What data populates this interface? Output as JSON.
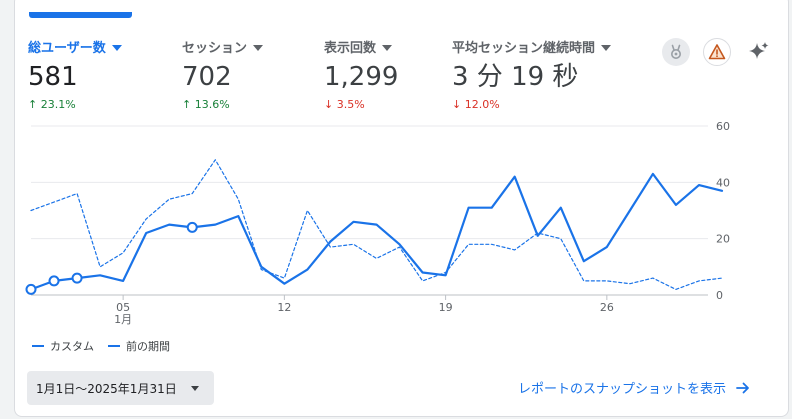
{
  "metrics": [
    {
      "label": "総ユーザー数",
      "value": "581",
      "change": "23.1%",
      "direction": "up",
      "active": true
    },
    {
      "label": "セッション",
      "value": "702",
      "change": "13.6%",
      "direction": "up",
      "active": false
    },
    {
      "label": "表示回数",
      "value": "1,299",
      "change": "3.5%",
      "direction": "down",
      "active": false
    },
    {
      "label": "平均セッション継続時間",
      "value": "3 分 19 秒",
      "change": "12.0%",
      "direction": "down",
      "active": false
    }
  ],
  "arrows": {
    "up": "↑",
    "down": "↓"
  },
  "toolbar": {
    "badge_icon": "rabbit-badge-icon",
    "warning_icon": "warning-icon",
    "insights_icon": "sparkle-icon"
  },
  "colors": {
    "accent": "#1a73e8",
    "up": "#188038",
    "down": "#d93025"
  },
  "chart_data": {
    "type": "line",
    "x": [
      1,
      2,
      3,
      4,
      5,
      6,
      7,
      8,
      9,
      10,
      11,
      12,
      13,
      14,
      15,
      16,
      17,
      18,
      19,
      20,
      21,
      22,
      23,
      24,
      25,
      26,
      27,
      28,
      29,
      30,
      31
    ],
    "ylim": [
      0,
      60
    ],
    "yticks": [
      "60",
      "40",
      "20",
      "0"
    ],
    "xticks": [
      {
        "day": 5,
        "label": "05",
        "sub": "1月"
      },
      {
        "day": 12,
        "label": "12",
        "sub": ""
      },
      {
        "day": 19,
        "label": "19",
        "sub": ""
      },
      {
        "day": 26,
        "label": "26",
        "sub": ""
      }
    ],
    "series": [
      {
        "name": "カスタム",
        "style": "solid",
        "values": [
          2,
          5,
          6,
          7,
          5,
          22,
          25,
          24,
          25,
          28,
          10,
          4,
          9,
          19,
          26,
          25,
          18,
          8,
          7,
          31,
          31,
          42,
          21,
          31,
          12,
          17,
          30,
          43,
          32,
          39,
          37
        ],
        "markers": [
          1,
          2,
          3,
          8
        ]
      },
      {
        "name": "前の期間",
        "style": "dashed",
        "values": [
          30,
          33,
          36,
          10,
          15,
          27,
          34,
          36,
          48,
          34,
          9,
          6,
          30,
          17,
          18,
          13,
          17,
          5,
          8,
          18,
          18,
          16,
          22,
          20,
          5,
          5,
          4,
          6,
          2,
          5,
          6
        ]
      }
    ]
  },
  "legend": [
    {
      "label": "カスタム"
    },
    {
      "label": "前の期間"
    }
  ],
  "date_range": "1月1日～2025年1月31日",
  "report_link": "レポートのスナップショットを表示"
}
